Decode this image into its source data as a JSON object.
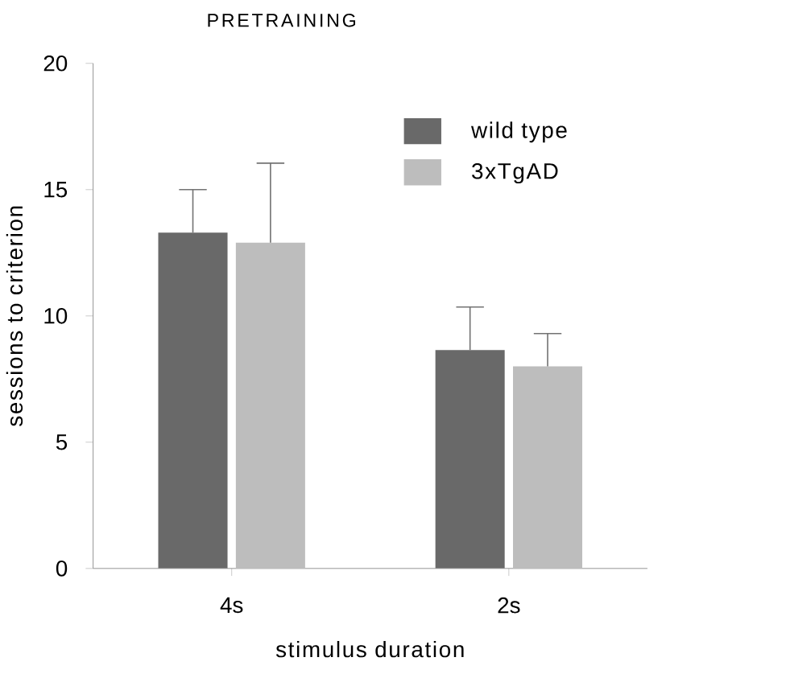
{
  "chart_data": {
    "type": "bar",
    "title": "PRETRAINING",
    "xlabel": "stimulus duration",
    "ylabel": "sessions to criterion",
    "categories": [
      "4s",
      "2s"
    ],
    "series": [
      {
        "name": "wild type",
        "color": "#696969",
        "values": [
          13.3,
          8.65
        ],
        "errors": [
          [
            13.3,
            15.0
          ],
          [
            8.65,
            10.35
          ]
        ]
      },
      {
        "name": "3xTgAD",
        "color": "#bdbdbd",
        "values": [
          12.9,
          8.0
        ],
        "errors": [
          [
            12.9,
            16.05
          ],
          [
            8.0,
            9.3
          ]
        ]
      }
    ],
    "ylim": [
      0,
      20
    ],
    "yticks": [
      0,
      5,
      10,
      15,
      20
    ],
    "legend": "top right",
    "grid": false
  }
}
